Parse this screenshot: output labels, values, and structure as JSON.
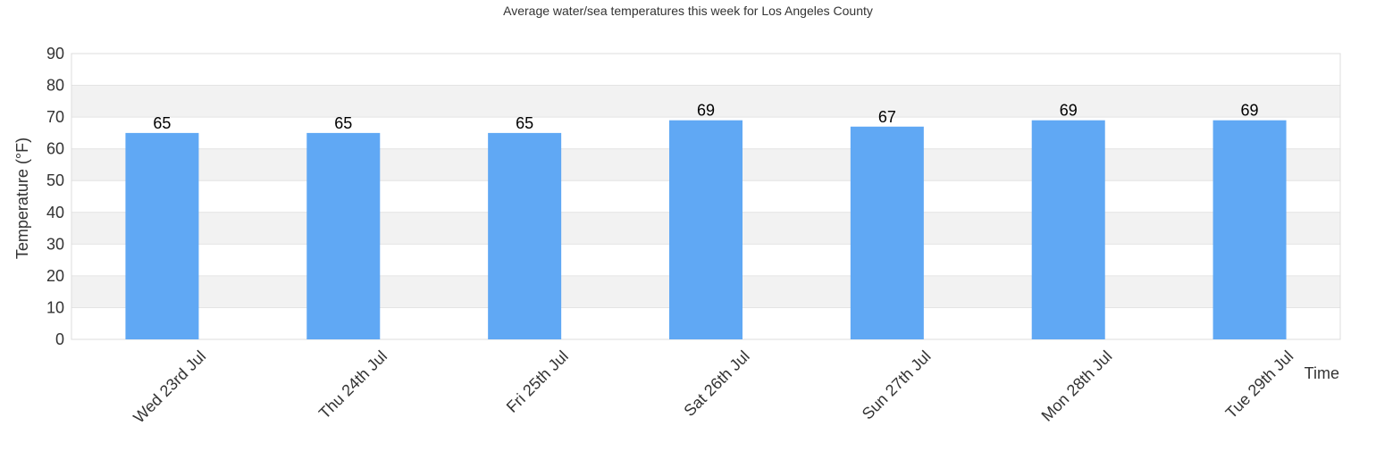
{
  "chart_data": {
    "type": "bar",
    "title": "Average water/sea temperatures this week for Los Angeles County",
    "xlabel": "Time",
    "ylabel": "Temperature (°F)",
    "categories": [
      "Wed 23rd Jul",
      "Thu 24th Jul",
      "Fri 25th Jul",
      "Sat 26th Jul",
      "Sun 27th Jul",
      "Mon 28th Jul",
      "Tue 29th Jul"
    ],
    "values": [
      65,
      65,
      65,
      69,
      67,
      69,
      69
    ],
    "value_labels": [
      "65",
      "65",
      "65",
      "69",
      "67",
      "69",
      "69"
    ],
    "ylim": [
      0,
      90
    ],
    "yticks": [
      0,
      10,
      20,
      30,
      40,
      50,
      60,
      70,
      80,
      90
    ],
    "ytick_labels": [
      "0",
      "10",
      "20",
      "30",
      "40",
      "50",
      "60",
      "70",
      "80",
      "90"
    ],
    "bar_color": "#60a8f4",
    "band_color": "#f2f2f2",
    "grid": true,
    "legend": "none"
  }
}
